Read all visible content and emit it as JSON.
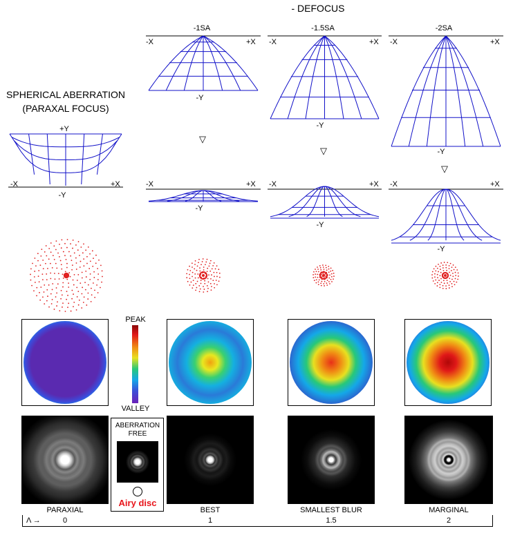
{
  "header": {
    "defocus_title": "- DEFOCUS"
  },
  "left_title": {
    "line1": "SPHERICAL ABERRATION",
    "line2": "(PARAXAL FOCUS)"
  },
  "axes": {
    "minus_x": "-X",
    "plus_x": "+X",
    "plus_y": "+Y",
    "minus_y": "-Y"
  },
  "columns": [
    {
      "defocus": "-1SA"
    },
    {
      "defocus": "-1.5SA"
    },
    {
      "defocus": "-2SA"
    }
  ],
  "triangle_glyph": "▽",
  "colorbar": {
    "peak": "PEAK",
    "valley": "VALLEY"
  },
  "airy": {
    "title_line1": "ABERRATION",
    "title_line2": "FREE",
    "caption": "Airy disc"
  },
  "psf_labels": [
    "PARAXIAL",
    "BEST",
    "SMALLEST BLUR",
    "MARGINAL"
  ],
  "scale": {
    "lambda_label": "Λ →",
    "values": [
      "0",
      "1",
      "1.5",
      "2"
    ]
  },
  "colors": {
    "mesh": "#1010c8",
    "spot": "#e02020",
    "airy_caption": "#e8141a"
  }
}
